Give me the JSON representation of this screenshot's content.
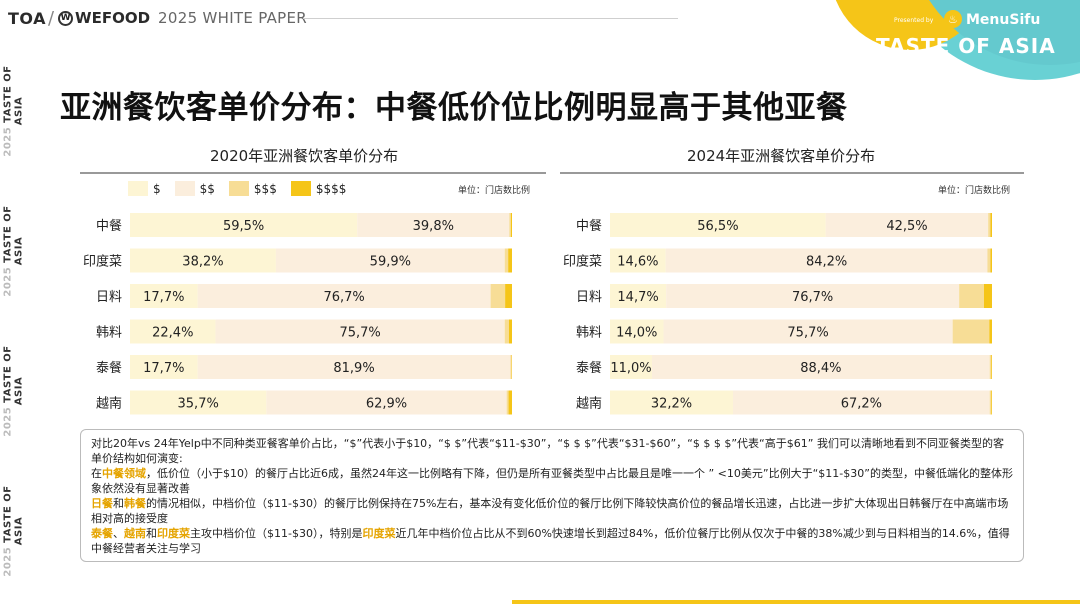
{
  "header": {
    "logo_toa": "TOA",
    "logo_wefood": "WEFOOD",
    "subtitle": "2025 WHITE PAPER"
  },
  "corner_brand": {
    "presented_by": "Presented by",
    "menusifu": "MenuSifu",
    "taste_of_asia": "TASTE OF ASIA"
  },
  "side_rail": {
    "label": "TASTE OF ASIA",
    "year": "2025"
  },
  "title": "亚洲餐饮客单价分布：中餐低价位比例明显高于其他亚餐",
  "legend": [
    "$",
    "$$",
    "$$$",
    "$$$$"
  ],
  "colors": {
    "$": "#fdf5d4",
    "$$": "#fbeedd",
    "$$$": "#f7dd96",
    "$$$$": "#f5c518",
    "accent": "#f5c518"
  },
  "chart_data": [
    {
      "type": "bar",
      "orientation": "horizontal-stacked-100",
      "title": "2020年亚洲餐饮客单价分布",
      "unit_label": "单位：门店数比例",
      "categories": [
        "中餐",
        "印度菜",
        "日料",
        "韩料",
        "泰餐",
        "越南"
      ],
      "series": [
        {
          "name": "$",
          "values": [
            59.5,
            38.2,
            17.7,
            22.4,
            17.7,
            35.7
          ]
        },
        {
          "name": "$$",
          "values": [
            39.8,
            59.9,
            76.7,
            75.7,
            81.9,
            62.9
          ]
        },
        {
          "name": "$$$",
          "values": [
            0.4,
            0.9,
            3.8,
            1.1,
            0.3,
            0.5
          ]
        },
        {
          "name": "$$$$",
          "values": [
            0.3,
            1.0,
            1.8,
            0.8,
            0.1,
            0.9
          ]
        }
      ],
      "labels": [
        [
          "59,5%",
          "39,8%"
        ],
        [
          "38,2%",
          "59,9%"
        ],
        [
          "17,7%",
          "76,7%"
        ],
        [
          "22,4%",
          "75,7%"
        ],
        [
          "17,7%",
          "81,9%"
        ],
        [
          "35,7%",
          "62,9%"
        ]
      ]
    },
    {
      "type": "bar",
      "orientation": "horizontal-stacked-100",
      "title": "2024年亚洲餐饮客单价分布",
      "unit_label": "单位：门店数比例",
      "categories": [
        "中餐",
        "印度菜",
        "日料",
        "韩料",
        "泰餐",
        "越南"
      ],
      "series": [
        {
          "name": "$",
          "values": [
            56.5,
            14.6,
            14.7,
            14.0,
            11.0,
            32.2
          ]
        },
        {
          "name": "$$",
          "values": [
            42.5,
            84.2,
            76.7,
            75.7,
            88.4,
            67.2
          ]
        },
        {
          "name": "$$$",
          "values": [
            0.6,
            0.8,
            6.5,
            9.6,
            0.4,
            0.4
          ]
        },
        {
          "name": "$$$$",
          "values": [
            0.4,
            0.4,
            2.1,
            0.7,
            0.2,
            0.2
          ]
        }
      ],
      "labels": [
        [
          "56,5%",
          "42,5%"
        ],
        [
          "14,6%",
          "84,2%"
        ],
        [
          "14,7%",
          "76,7%"
        ],
        [
          "14,0%",
          "75,7%"
        ],
        [
          "11,0%",
          "88,4%"
        ],
        [
          "32,2%",
          "67,2%"
        ]
      ]
    }
  ],
  "description": {
    "line1": "对比20年vs 24年Yelp中不同种类亚餐客单价占比，“$”代表小于$10，“$ $”代表“$11-$30”，“$ $ $”代表“$31-$60”，“$ $ $ $”代表“高于$61” 我们可以清晰地看到不同亚餐类型的客单价结构如何演变:",
    "p1_prefix": "在",
    "p1_hl": "中餐领域",
    "p1_rest": "，低价位（小于$10）的餐厅占比近6成，虽然24年这一比例略有下降，但仍是所有亚餐类型中占比最且是唯一一个 ” <10美元”比例大于“$11-$30”的类型，中餐低端化的整体形象依然没有显著改善",
    "p2_hl1": "日餐",
    "p2_mid": "和",
    "p2_hl2": "韩餐",
    "p2_rest": "的情况相似，中档价位（$11-$30）的餐厅比例保持在75%左右，基本没有变化低价位的餐厅比例下降较快高价位的餐品增长迅速，占比进一步扩大体现出日韩餐厅在中高端市场相对高的接受度",
    "p3_hl1": "泰餐",
    "p3_sep1": "、",
    "p3_hl2": "越南",
    "p3_and": "和",
    "p3_hl3": "印度菜",
    "p3_mid": "主攻中档价位（$11-$30），特别是",
    "p3_hl4": "印度菜",
    "p3_rest": "近几年中档价位占比从不到60%快速增长到超过84%，低价位餐厅比例从仅次于中餐的38%减少到与日料相当的14.6%，值得中餐经营者关注与学习"
  }
}
